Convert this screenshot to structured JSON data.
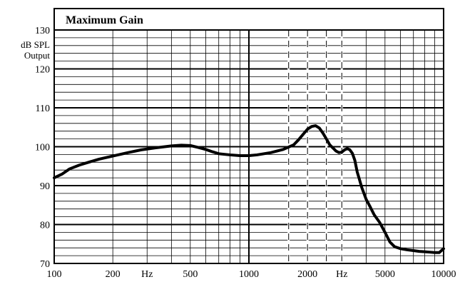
{
  "chart_data": {
    "type": "line",
    "title": "Maximum Gain",
    "ylabel_lines": [
      "dB SPL",
      "Output"
    ],
    "xscale": "log",
    "xlim": [
      100,
      10000
    ],
    "ylim": [
      70,
      130
    ],
    "grid": true,
    "y_major_ticks": [
      70,
      80,
      90,
      100,
      110,
      120,
      130
    ],
    "y_tick_labels": [
      "70",
      "80",
      "90",
      "100",
      "110",
      "120",
      "130"
    ],
    "x_tick_values": [
      100,
      200,
      500,
      1000,
      2000,
      5000,
      10000
    ],
    "x_tick_labels": [
      "100",
      "200",
      "500",
      "1000",
      "2000",
      "5000",
      "10000"
    ],
    "x_unit_label": "Hz",
    "x_unit_positions": [
      300,
      3000
    ],
    "dashed_verticals": [
      1600,
      2000,
      2500,
      3000
    ],
    "series": [
      {
        "x": [
          100,
          110,
          120,
          135,
          150,
          170,
          200,
          240,
          280,
          330,
          400,
          450,
          500,
          550,
          600,
          650,
          700,
          800,
          900,
          1000,
          1100,
          1300,
          1500,
          1700,
          1800,
          1900,
          2000,
          2100,
          2200,
          2300,
          2400,
          2500,
          2600,
          2700,
          2800,
          2900,
          3000,
          3100,
          3200,
          3300,
          3400,
          3500,
          3600,
          3700,
          3800,
          3900,
          4000,
          4200,
          4400,
          4700,
          5000,
          5300,
          5600,
          6000,
          6500,
          7000,
          7500,
          8000,
          8500,
          9000,
          9500,
          10000
        ],
        "values": [
          92,
          93,
          94.3,
          95.3,
          96,
          96.8,
          97.6,
          98.5,
          99.2,
          99.7,
          100.2,
          100.4,
          100.3,
          99.8,
          99.3,
          98.7,
          98.2,
          97.9,
          97.7,
          97.7,
          97.9,
          98.5,
          99.3,
          100.5,
          101.8,
          103.2,
          104.5,
          105.2,
          105.4,
          104.8,
          103.5,
          102,
          100.5,
          99.7,
          98.9,
          98.5,
          98.6,
          99.2,
          99.5,
          99.2,
          98.3,
          96.5,
          93.5,
          91.5,
          89.5,
          88,
          86.5,
          84.5,
          82.5,
          80.5,
          78,
          75.5,
          74.3,
          73.8,
          73.5,
          73.3,
          73.1,
          73,
          72.9,
          72.8,
          72.8,
          73.8
        ]
      }
    ]
  }
}
